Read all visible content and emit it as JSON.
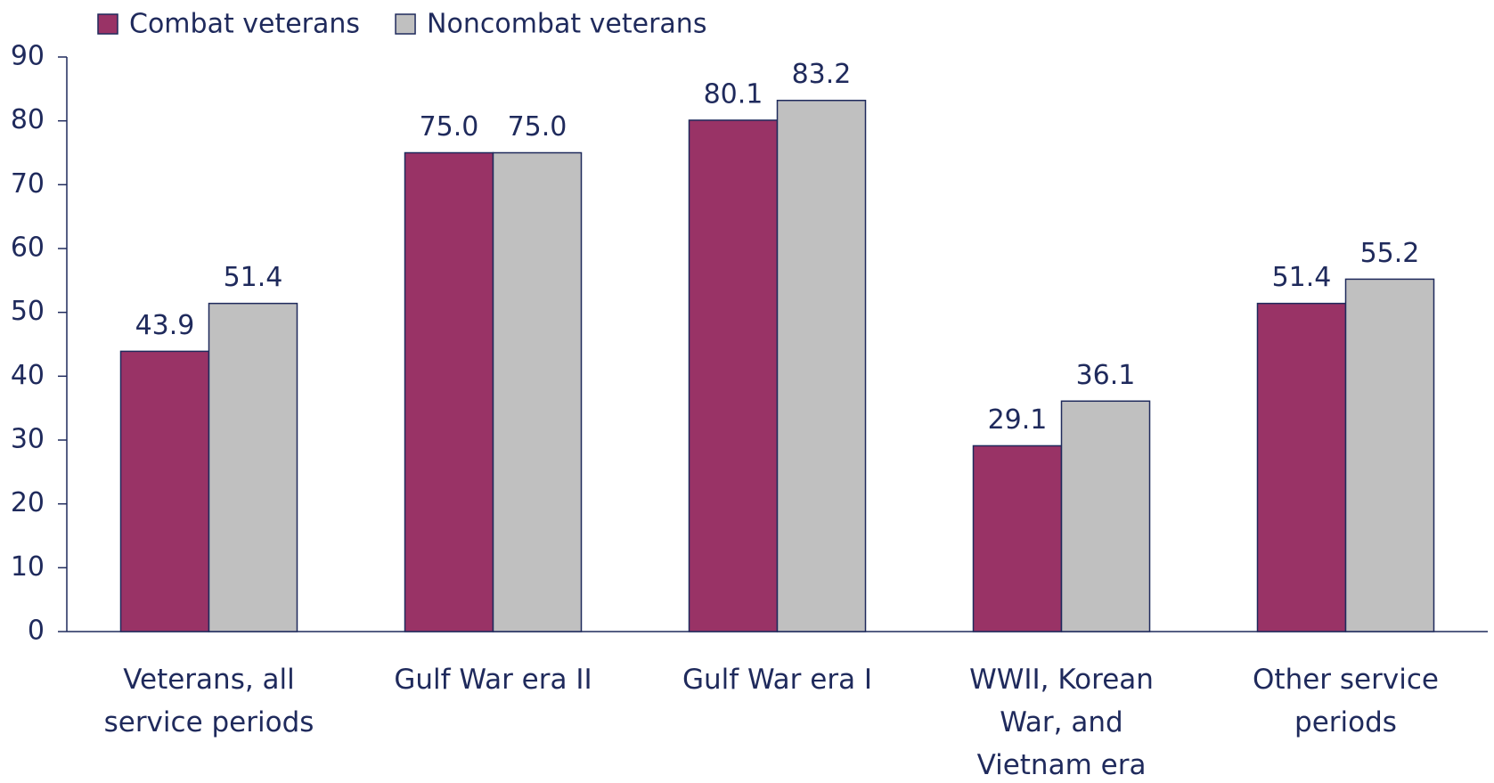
{
  "chart_data": {
    "type": "bar",
    "categories": [
      "Veterans, all service periods",
      "Gulf War era II",
      "Gulf War era I",
      "WWII, Korean War, and Vietnam era",
      "Other service periods"
    ],
    "series": [
      {
        "name": "Combat veterans",
        "color": "#993366",
        "values": [
          43.9,
          75,
          80.1,
          29.1,
          51.4
        ],
        "value_labels": [
          "43.9",
          "75.0",
          "80.1",
          "29.1",
          "51.4"
        ]
      },
      {
        "name": "Noncombat veterans",
        "color": "#c0c0c0",
        "values": [
          51.4,
          75,
          83.2,
          36.1,
          55.2
        ],
        "value_labels": [
          "51.4",
          "75.0",
          "83.2",
          "36.1",
          "55.2"
        ]
      }
    ],
    "ylim": [
      0,
      90
    ],
    "yticks": [
      0,
      10,
      20,
      30,
      40,
      50,
      60,
      70,
      80,
      90
    ],
    "legend": "top-left",
    "grid": false
  }
}
